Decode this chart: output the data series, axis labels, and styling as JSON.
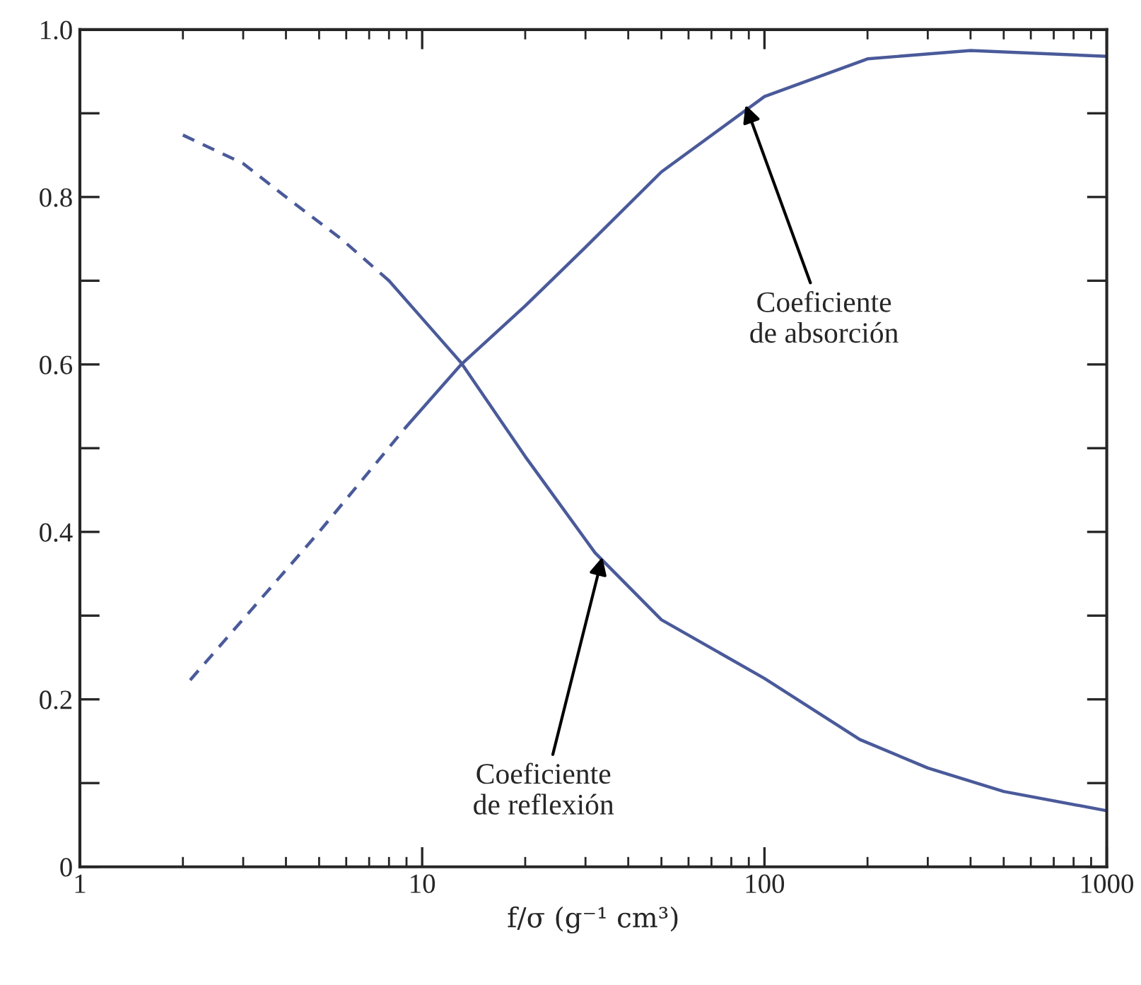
{
  "chart_data": {
    "type": "line",
    "xlabel": "f/σ (g⁻¹ cm³)",
    "log": "x",
    "xlim": [
      1,
      1000
    ],
    "xticks": [
      1,
      10,
      100,
      1000
    ],
    "ylim": [
      0,
      1.0
    ],
    "yticks": [
      0,
      {
        "value": 0.1,
        "label": null
      },
      0.2,
      {
        "value": 0.3,
        "label": null
      },
      0.4,
      {
        "value": 0.5,
        "label": null
      },
      0.6,
      {
        "value": 0.7,
        "label": null
      },
      0.8,
      {
        "value": 0.9,
        "label": null
      },
      {
        "value": 1.0,
        "label": "1.0"
      }
    ],
    "grid": false,
    "legend": false,
    "marker": "none",
    "series": [
      {
        "color": "#4a5a9a",
        "line_style": "dashed",
        "x": [
          2,
          3,
          4,
          5.8,
          8
        ],
        "values": [
          0.874,
          0.84,
          0.8,
          0.75,
          0.7
        ]
      },
      {
        "color": "#4a5a9a",
        "line_style": "solid",
        "x": [
          8,
          10,
          13,
          20,
          32,
          50,
          100,
          190,
          300,
          500,
          1000
        ],
        "values": [
          0.7,
          0.655,
          0.602,
          0.49,
          0.375,
          0.295,
          0.225,
          0.152,
          0.118,
          0.09,
          0.067
        ]
      },
      {
        "color": "#4a5a9a",
        "line_style": "dashed",
        "x": [
          2.1,
          5,
          9
        ],
        "values": [
          0.223,
          0.4,
          0.526
        ]
      },
      {
        "color": "#4a5a9a",
        "line_style": "solid",
        "x": [
          9,
          13,
          20,
          30,
          50,
          100,
          200,
          400,
          1000
        ],
        "values": [
          0.526,
          0.6,
          0.67,
          0.74,
          0.83,
          0.92,
          0.965,
          0.975,
          0.968
        ]
      }
    ],
    "annotations": [
      {
        "text": "Coeficiente\nde absorción",
        "x": 88,
        "y": 0.91
      },
      {
        "text": "Coeficiente\nde reflexión",
        "x": 33.6,
        "y": 0.37
      }
    ]
  }
}
